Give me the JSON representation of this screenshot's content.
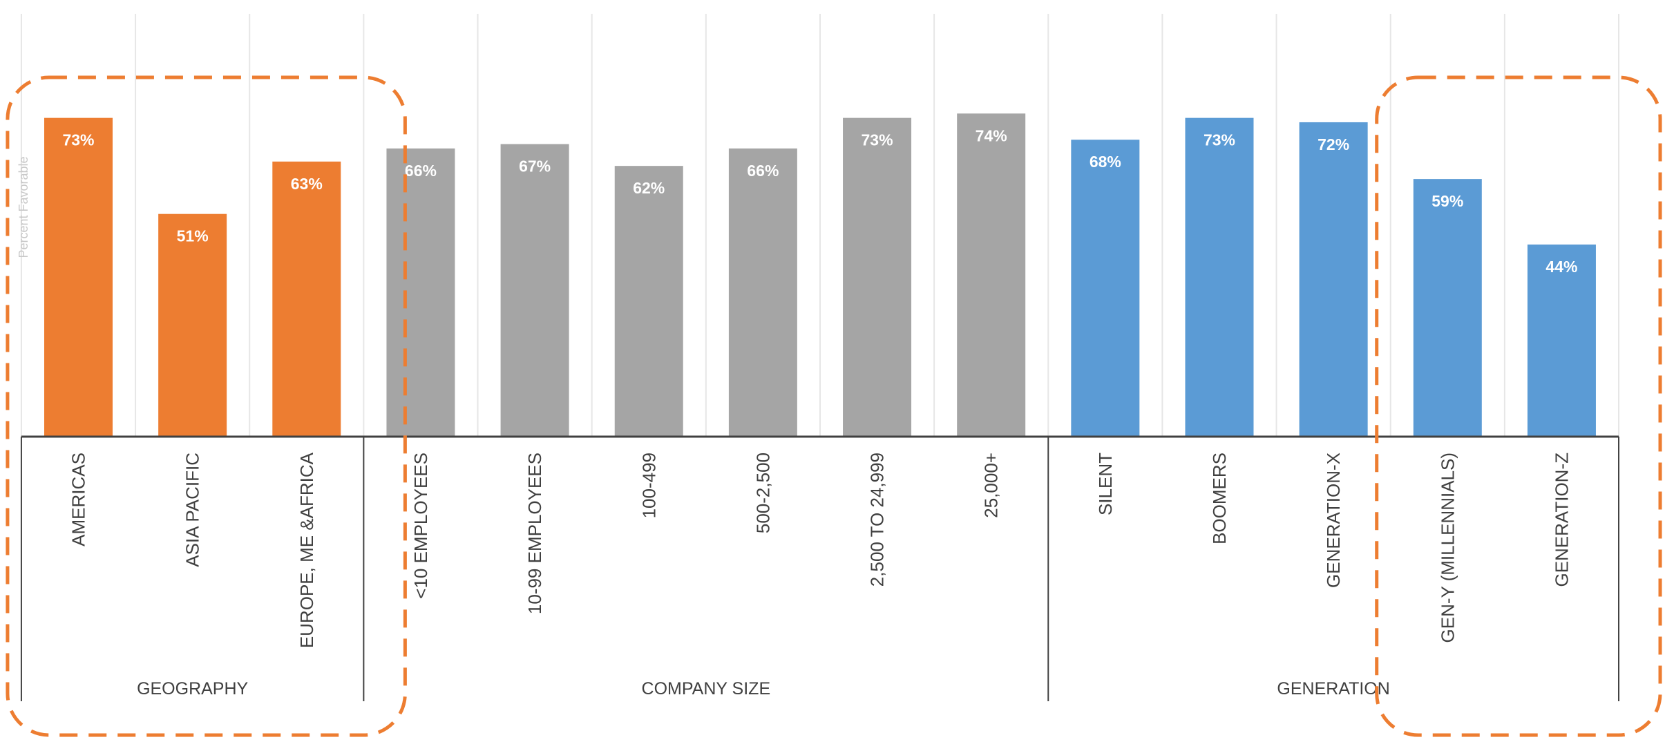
{
  "chart_data": {
    "type": "bar",
    "title": "",
    "ylabel": "Percent Favorable",
    "xlabel": "",
    "ylim": [
      0,
      100
    ],
    "grid": true,
    "categories": [
      "AMERICAS",
      "ASIA PACIFIC",
      "EUROPE, ME &AFRICA",
      "<10 EMPLOYEES",
      "10-99 EMPLOYEES",
      "100-499",
      "500-2,500",
      "2,500 TO 24,999",
      "25,000+",
      "SILENT",
      "BOOMERS",
      "GENERATION-X",
      "GEN-Y (MILLENNIALS)",
      "GENERATION-Z"
    ],
    "values": [
      73,
      51,
      63,
      66,
      67,
      62,
      66,
      73,
      74,
      68,
      73,
      72,
      59,
      44
    ],
    "value_labels": [
      "73%",
      "51%",
      "63%",
      "66%",
      "67%",
      "62%",
      "66%",
      "73%",
      "74%",
      "68%",
      "73%",
      "72%",
      "59%",
      "44%"
    ],
    "groups": [
      {
        "name": "GEOGRAPHY",
        "start": 0,
        "end": 2,
        "color": "#ED7D31"
      },
      {
        "name": "COMPANY SIZE",
        "start": 3,
        "end": 8,
        "color": "#A5A5A5"
      },
      {
        "name": "GENERATION",
        "start": 9,
        "end": 13,
        "color": "#5B9BD5"
      }
    ],
    "highlights": [
      {
        "start": 0,
        "end": 2,
        "color": "#ED7D31",
        "style": "dashed"
      },
      {
        "start": 12,
        "end": 13,
        "color": "#ED7D31",
        "style": "dashed"
      }
    ]
  }
}
